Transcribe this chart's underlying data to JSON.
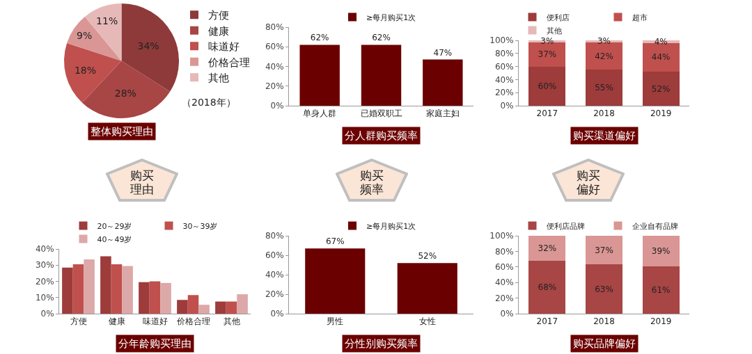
{
  "chart_data": [
    {
      "type": "pie",
      "title": "整体购买理由",
      "categories": [
        "方便",
        "健康",
        "味道好",
        "价格合理",
        "其他"
      ],
      "values": [
        34,
        28,
        18,
        9,
        11
      ],
      "value_labels": [
        "34%",
        "28%",
        "18%",
        "9%",
        "11%"
      ],
      "colors": [
        "#8e3a3a",
        "#a84545",
        "#c0504d",
        "#d99694",
        "#e6b9b8"
      ],
      "legend": "right",
      "annotations": [
        "（2018年）"
      ]
    },
    {
      "type": "bar",
      "title": "分人群购买频率",
      "categories": [
        "单身人群",
        "已婚双职工",
        "家庭主妇"
      ],
      "series": [
        {
          "name": "≥每月购买1次",
          "color": "#6b0000",
          "values": [
            62,
            62,
            47
          ],
          "value_labels": [
            "62%",
            "62%",
            "47%"
          ]
        }
      ],
      "ylim": [
        0,
        80
      ],
      "yticks": [
        {
          "value": 0,
          "label": "0%"
        },
        {
          "value": 20,
          "label": "20%"
        },
        {
          "value": 40,
          "label": "40%"
        },
        {
          "value": 60,
          "label": "60%"
        },
        {
          "value": 80,
          "label": "80%"
        }
      ],
      "legend": "top",
      "grid": false
    },
    {
      "type": "bar",
      "title": "购买渠道偏好",
      "categories": [
        "2017",
        "2018",
        "2019"
      ],
      "stacked": true,
      "series": [
        {
          "name": "便利店",
          "color": "#9e3b3b",
          "values": [
            60,
            55,
            52
          ],
          "value_labels": [
            "60%",
            "55%",
            "52%"
          ]
        },
        {
          "name": "超市",
          "color": "#c0504d",
          "values": [
            37,
            42,
            44
          ],
          "value_labels": [
            "37%",
            "42%",
            "44%"
          ]
        },
        {
          "name": "其他",
          "color": "#e6b9b8",
          "values": [
            3,
            3,
            4
          ],
          "value_labels": [
            "3%",
            "3%",
            "4%"
          ]
        }
      ],
      "ylim": [
        0,
        100
      ],
      "yticks": [
        {
          "value": 0,
          "label": "0%"
        },
        {
          "value": 20,
          "label": "20%"
        },
        {
          "value": 40,
          "label": "40%"
        },
        {
          "value": 60,
          "label": "60%"
        },
        {
          "value": 80,
          "label": "80%"
        },
        {
          "value": 100,
          "label": "100%"
        }
      ],
      "legend": "top",
      "grid": false
    },
    {
      "type": "other",
      "title": "购买理由"
    },
    {
      "type": "other",
      "title": "购买频率"
    },
    {
      "type": "other",
      "title": "购买偏好"
    },
    {
      "type": "bar",
      "title": "分年龄购买理由",
      "categories": [
        "方便",
        "健康",
        "味道好",
        "价格合理",
        "其他"
      ],
      "series": [
        {
          "name": "20～29岁",
          "color": "#9e3b3b",
          "values": [
            28.5,
            35.5,
            19.5,
            8.5,
            7.5
          ]
        },
        {
          "name": "30～39岁",
          "color": "#c0504d",
          "values": [
            30.5,
            30.5,
            20,
            11.5,
            7.5
          ]
        },
        {
          "name": "40～49岁",
          "color": "#dda8a8",
          "values": [
            33.5,
            29.5,
            19,
            5.5,
            12
          ]
        }
      ],
      "ylim": [
        0,
        40
      ],
      "yticks": [
        {
          "value": 0,
          "label": "0%"
        },
        {
          "value": 10,
          "label": "10%"
        },
        {
          "value": 20,
          "label": "20%"
        },
        {
          "value": 30,
          "label": "30%"
        },
        {
          "value": 40,
          "label": "40%"
        }
      ],
      "legend": "top",
      "grid": false
    },
    {
      "type": "bar",
      "title": "分性别购买频率",
      "categories": [
        "男性",
        "女性"
      ],
      "series": [
        {
          "name": "≥每月购买1次",
          "color": "#6b0000",
          "values": [
            67,
            52
          ],
          "value_labels": [
            "67%",
            "52%"
          ]
        }
      ],
      "ylim": [
        0,
        80
      ],
      "yticks": [
        {
          "value": 0,
          "label": "0%"
        },
        {
          "value": 20,
          "label": "20%"
        },
        {
          "value": 40,
          "label": "40%"
        },
        {
          "value": 60,
          "label": "60%"
        },
        {
          "value": 80,
          "label": "80%"
        }
      ],
      "legend": "top",
      "grid": false
    },
    {
      "type": "bar",
      "title": "购买品牌偏好",
      "categories": [
        "2017",
        "2018",
        "2019"
      ],
      "stacked": true,
      "series": [
        {
          "name": "便利店品牌",
          "color": "#a84545",
          "values": [
            68,
            63,
            61
          ],
          "value_labels": [
            "68%",
            "63%",
            "61%"
          ]
        },
        {
          "name": "企业自有品牌",
          "color": "#d99694",
          "values": [
            32,
            37,
            39
          ],
          "value_labels": [
            "32%",
            "37%",
            "39%"
          ]
        }
      ],
      "ylim": [
        0,
        100
      ],
      "yticks": [
        {
          "value": 0,
          "label": "0%"
        },
        {
          "value": 20,
          "label": "20%"
        },
        {
          "value": 40,
          "label": "40%"
        },
        {
          "value": 60,
          "label": "60%"
        },
        {
          "value": 80,
          "label": "80%"
        },
        {
          "value": 100,
          "label": "100%"
        }
      ],
      "legend": "top",
      "grid": false
    }
  ]
}
